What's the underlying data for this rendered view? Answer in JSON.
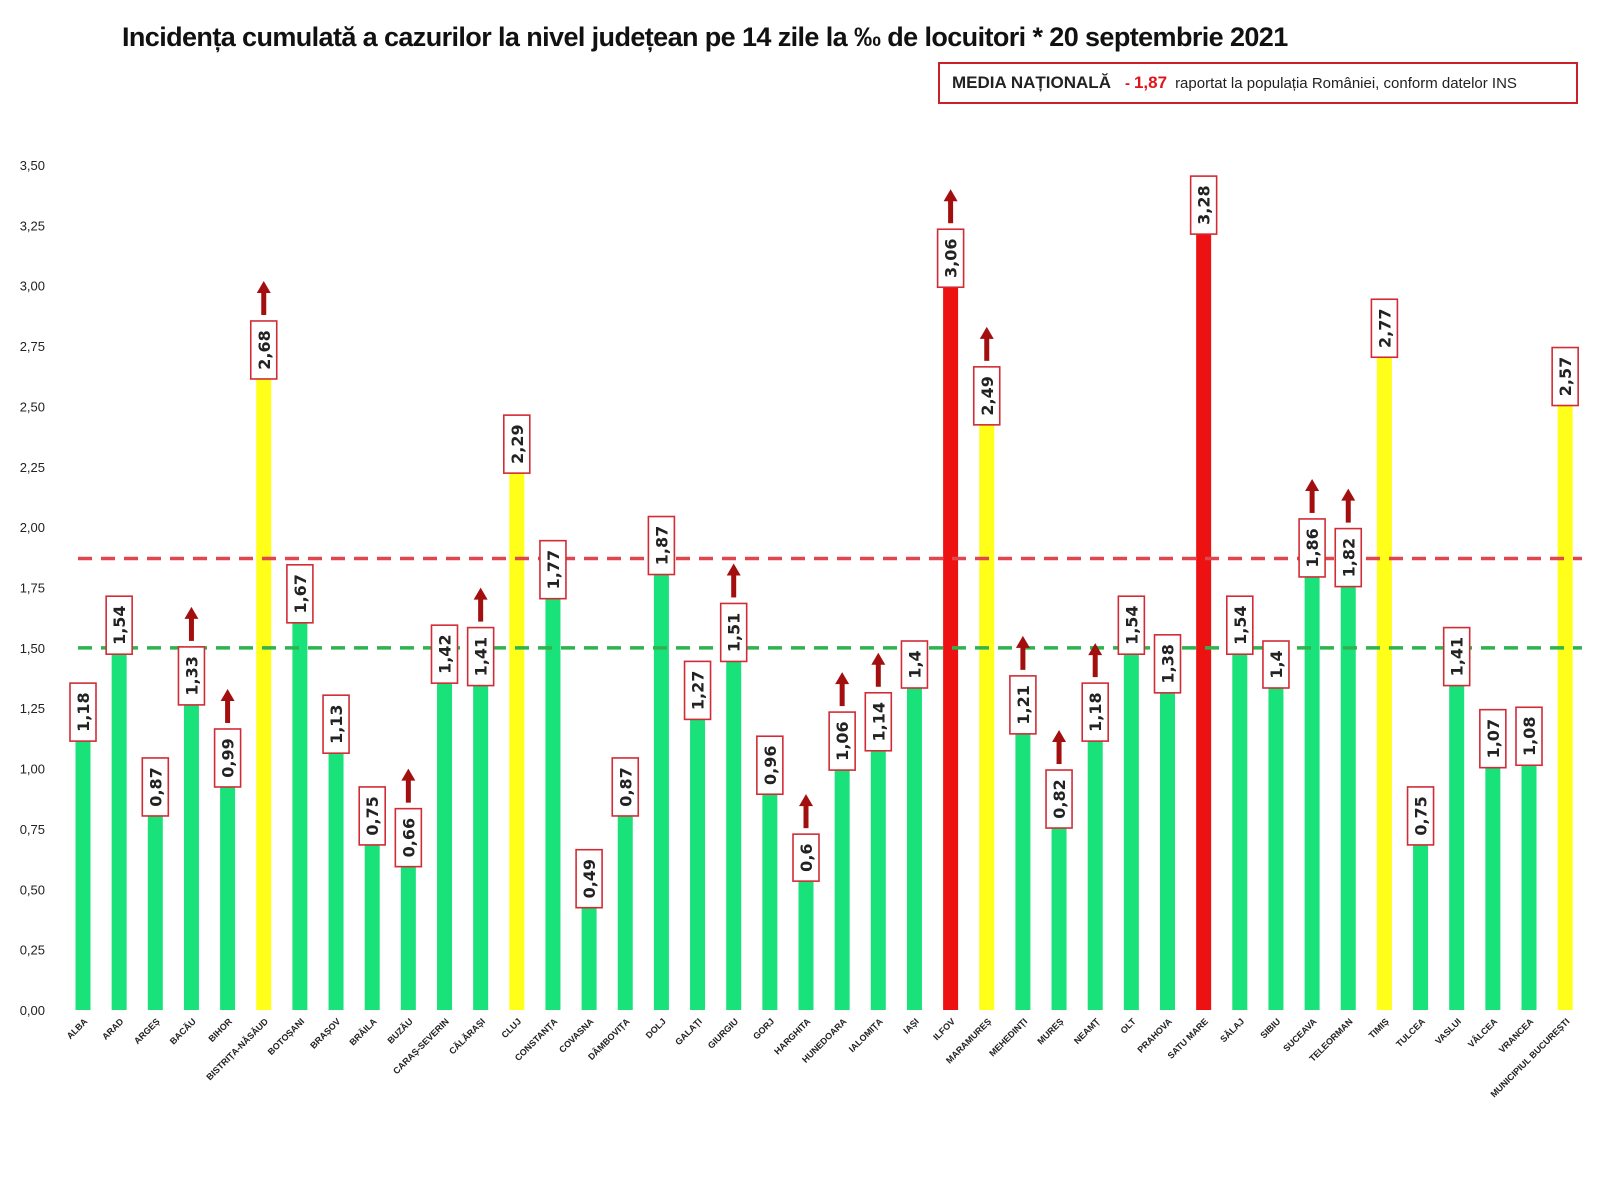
{
  "title": "Incidența cumulată a cazurilor la nivel județean pe 14 zile la ‰ de locuitori * 20 septembrie 2021",
  "legend_box": {
    "label": "MEDIA NAȚIONALĂ",
    "dash": "-",
    "value": "1,87",
    "description": "raportat la populația României, conform datelor INS"
  },
  "colors": {
    "green": "#19e27a",
    "yellow": "#ffff1a",
    "red": "#ee1111",
    "arrow": "#a30f0f",
    "label_border": "#d12c36",
    "national_line": "#e0464d",
    "threshold_line": "#2fb34f"
  },
  "chart_data": {
    "type": "bar",
    "title": "Incidența cumulată a cazurilor la nivel județean pe 14 zile la ‰ de locuitori * 20 septembrie 2021",
    "xlabel": "",
    "ylabel": "",
    "ylim": [
      0,
      3.5
    ],
    "yticks": [
      0,
      0.25,
      0.5,
      0.75,
      1.0,
      1.25,
      1.5,
      1.75,
      2.0,
      2.25,
      2.5,
      2.75,
      3.0,
      3.25,
      3.5
    ],
    "ytick_labels": [
      "0,00",
      "0,25",
      "0,50",
      "0,75",
      "1,00",
      "1,25",
      "1,50",
      "1,75",
      "2,00",
      "2,25",
      "2,50",
      "2,75",
      "3,00",
      "3,25",
      "3,50"
    ],
    "reference_lines": [
      {
        "name": "media-nationala",
        "value": 1.87,
        "color": "#e0464d"
      },
      {
        "name": "prag",
        "value": 1.5,
        "color": "#2fb34f"
      }
    ],
    "categories": [
      "ALBA",
      "ARAD",
      "ARGEȘ",
      "BACĂU",
      "BIHOR",
      "BISTRIȚA-NĂSĂUD",
      "BOTOȘANI",
      "BRAȘOV",
      "BRĂILA",
      "BUZĂU",
      "CARAȘ-SEVERIN",
      "CĂLĂRAȘI",
      "CLUJ",
      "CONSTANȚA",
      "COVASNA",
      "DÂMBOVIȚA",
      "DOLJ",
      "GALAȚI",
      "GIURGIU",
      "GORJ",
      "HARGHITA",
      "HUNEDOARA",
      "IALOMIȚA",
      "IAȘI",
      "ILFOV",
      "MARAMUREȘ",
      "MEHEDINȚI",
      "MUREȘ",
      "NEAMȚ",
      "OLT",
      "PRAHOVA",
      "SATU MARE",
      "SĂLAJ",
      "SIBIU",
      "SUCEAVA",
      "TELEORMAN",
      "TIMIȘ",
      "TULCEA",
      "VASLUI",
      "VÂLCEA",
      "VRANCEA",
      "MUNICIPIUL BUCUREȘTI"
    ],
    "values": [
      1.18,
      1.54,
      0.87,
      1.33,
      0.99,
      2.68,
      1.67,
      1.13,
      0.75,
      0.66,
      1.42,
      1.41,
      2.29,
      1.77,
      0.49,
      0.87,
      1.87,
      1.27,
      1.51,
      0.96,
      0.6,
      1.06,
      1.14,
      1.4,
      3.06,
      2.49,
      1.21,
      0.82,
      1.18,
      1.54,
      1.38,
      3.28,
      1.54,
      1.4,
      1.86,
      1.82,
      2.77,
      0.75,
      1.41,
      1.07,
      1.08,
      2.57
    ],
    "value_labels": [
      "1,18",
      "1,54",
      "0,87",
      "1,33",
      "0,99",
      "2,68",
      "1,67",
      "1,13",
      "0,75",
      "0,66",
      "1,42",
      "1,41",
      "2,29",
      "1,77",
      "0,49",
      "0,87",
      "1,87",
      "1,27",
      "1,51",
      "0,96",
      "0,6",
      "1,06",
      "1,14",
      "1,4",
      "3,06",
      "2,49",
      "1,21",
      "0,82",
      "1,18",
      "1,54",
      "1,38",
      "3,28",
      "1,54",
      "1,4",
      "1,86",
      "1,82",
      "2,77",
      "0,75",
      "1,41",
      "1,07",
      "1,08",
      "2,57"
    ],
    "bar_colors": [
      "green",
      "green",
      "green",
      "green",
      "green",
      "yellow",
      "green",
      "green",
      "green",
      "green",
      "green",
      "green",
      "yellow",
      "green",
      "green",
      "green",
      "green",
      "green",
      "green",
      "green",
      "green",
      "green",
      "green",
      "green",
      "red",
      "yellow",
      "green",
      "green",
      "green",
      "green",
      "green",
      "red",
      "green",
      "green",
      "green",
      "green",
      "yellow",
      "green",
      "green",
      "green",
      "green",
      "yellow"
    ],
    "increase_arrows": [
      "BACĂU",
      "BIHOR",
      "BISTRIȚA-NĂSĂUD",
      "BUZĂU",
      "CĂLĂRAȘI",
      "GIURGIU",
      "HARGHITA",
      "HUNEDOARA",
      "IALOMIȚA",
      "ILFOV",
      "MARAMUREȘ",
      "MEHEDINȚI",
      "MUREȘ",
      "NEAMȚ",
      "SUCEAVA",
      "TELEORMAN"
    ]
  }
}
